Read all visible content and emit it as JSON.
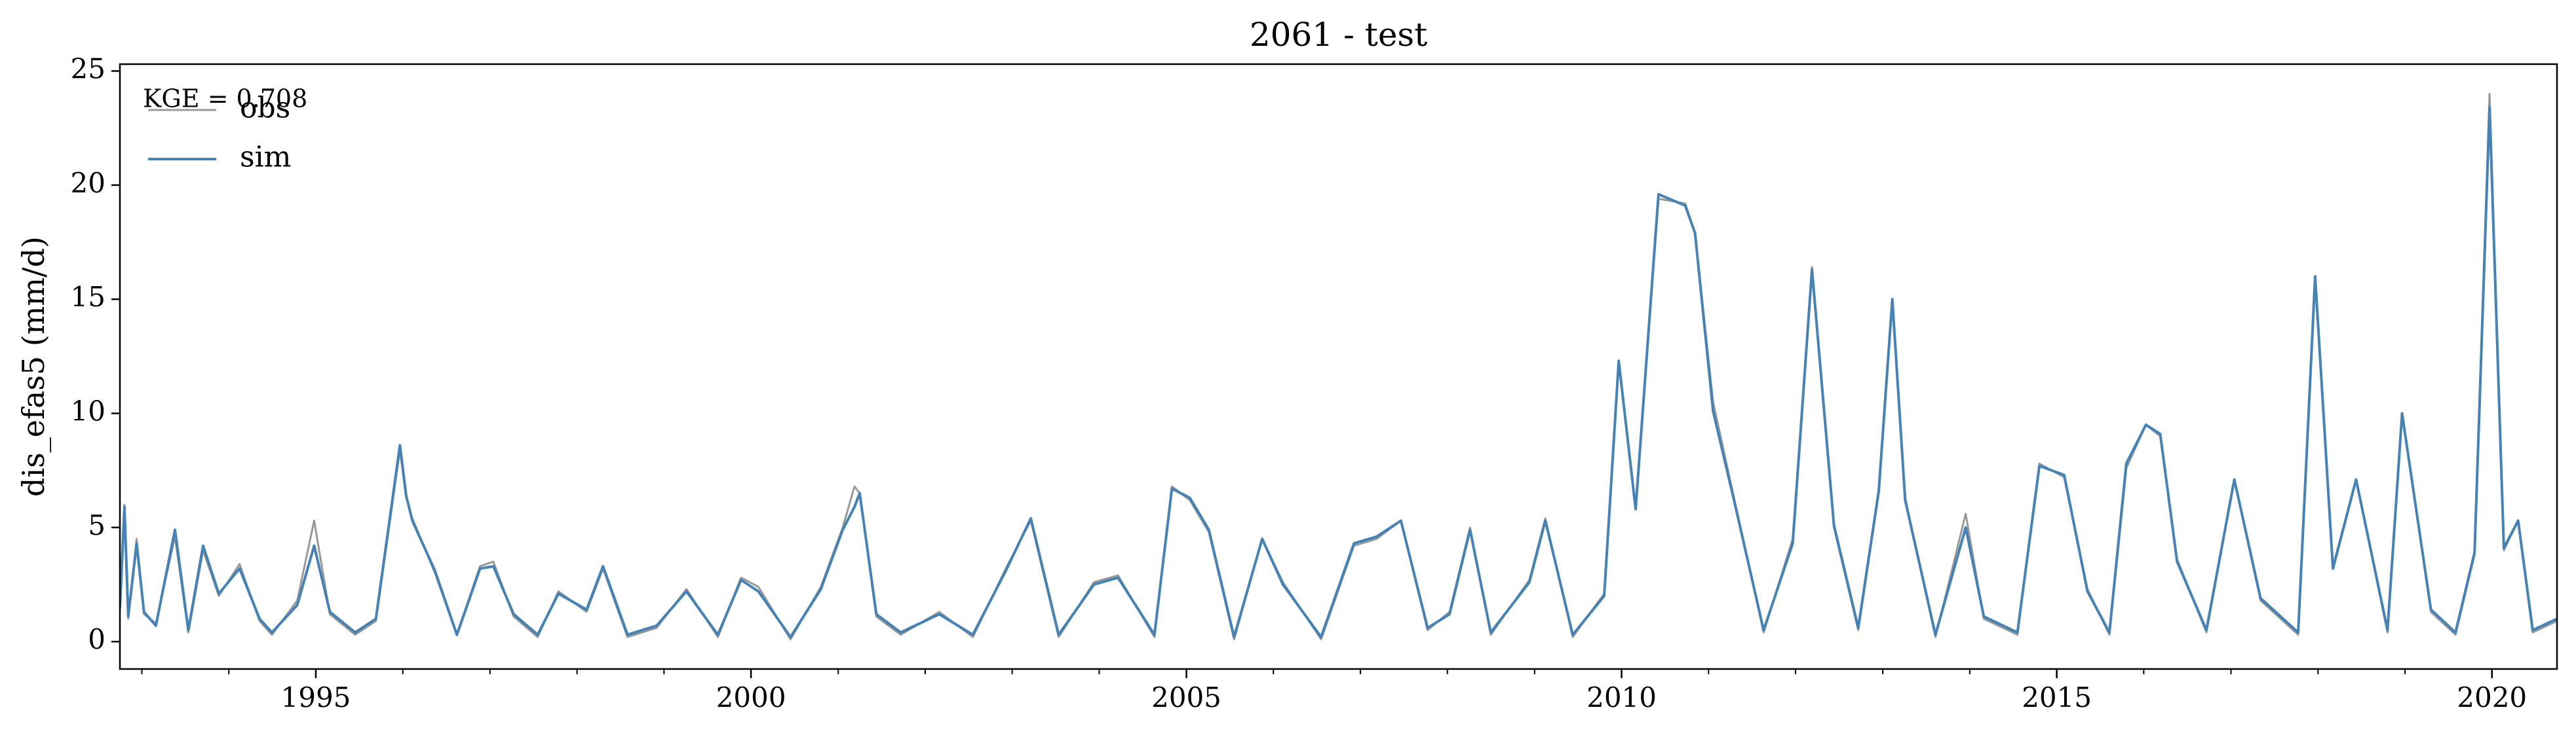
{
  "chart_data": {
    "type": "line",
    "title": "2061 - test",
    "xlabel": "",
    "ylabel": "dis_efas5 (mm/d)",
    "xlim": [
      "1992-10-01",
      "2020-09-30"
    ],
    "ylim": [
      -1.2,
      25.3
    ],
    "y_ticks": [
      0,
      5,
      10,
      15,
      20,
      25
    ],
    "y_tick_labels": [
      "0",
      "5",
      "10",
      "15",
      "20",
      "25"
    ],
    "x_ticks": [
      "1995-01-01",
      "2000-01-01",
      "2005-01-01",
      "2010-01-01",
      "2015-01-01",
      "2020-01-01"
    ],
    "x_tick_labels": [
      "1995",
      "2000",
      "2005",
      "2010",
      "2015",
      "2020"
    ],
    "grid": false,
    "legend_position": "top-left",
    "annotation": "KGE = 0.708",
    "series": [
      {
        "name": "obs",
        "color": "#999999",
        "points": [
          [
            "1992-10-01",
            1.4
          ],
          [
            "1992-10-20",
            6.0
          ],
          [
            "1992-11-05",
            1.0
          ],
          [
            "1992-12-10",
            4.5
          ],
          [
            "1993-01-10",
            1.2
          ],
          [
            "1993-03-01",
            0.8
          ],
          [
            "1993-05-20",
            4.6
          ],
          [
            "1993-07-15",
            0.4
          ],
          [
            "1993-09-15",
            4.0
          ],
          [
            "1993-11-20",
            2.0
          ],
          [
            "1994-02-15",
            3.4
          ],
          [
            "1994-05-10",
            0.9
          ],
          [
            "1994-07-01",
            0.3
          ],
          [
            "1994-10-15",
            1.8
          ],
          [
            "1994-12-25",
            5.3
          ],
          [
            "1995-03-01",
            1.2
          ],
          [
            "1995-06-15",
            0.3
          ],
          [
            "1995-09-10",
            0.9
          ],
          [
            "1995-12-20",
            8.4
          ],
          [
            "1996-01-15",
            6.3
          ],
          [
            "1996-02-10",
            5.4
          ],
          [
            "1996-05-15",
            3.0
          ],
          [
            "1996-08-15",
            0.3
          ],
          [
            "1996-11-20",
            3.3
          ],
          [
            "1997-01-15",
            3.5
          ],
          [
            "1997-04-10",
            1.1
          ],
          [
            "1997-07-20",
            0.2
          ],
          [
            "1997-10-15",
            2.2
          ],
          [
            "1998-02-10",
            1.3
          ],
          [
            "1998-04-20",
            3.2
          ],
          [
            "1998-08-01",
            0.2
          ],
          [
            "1998-12-01",
            0.6
          ],
          [
            "1999-04-05",
            2.3
          ],
          [
            "1999-08-15",
            0.2
          ],
          [
            "1999-11-20",
            2.8
          ],
          [
            "2000-02-01",
            2.4
          ],
          [
            "2000-06-15",
            0.1
          ],
          [
            "2000-10-20",
            2.4
          ],
          [
            "2001-01-20",
            5.0
          ],
          [
            "2001-03-10",
            6.8
          ],
          [
            "2001-04-01",
            6.5
          ],
          [
            "2001-06-10",
            1.1
          ],
          [
            "2001-09-20",
            0.3
          ],
          [
            "2002-03-01",
            1.3
          ],
          [
            "2002-07-20",
            0.2
          ],
          [
            "2002-12-05",
            3.2
          ],
          [
            "2003-03-20",
            5.3
          ],
          [
            "2003-07-15",
            0.2
          ],
          [
            "2003-12-10",
            2.6
          ],
          [
            "2004-03-20",
            2.9
          ],
          [
            "2004-08-20",
            0.2
          ],
          [
            "2004-11-01",
            6.8
          ],
          [
            "2005-01-15",
            6.2
          ],
          [
            "2005-04-05",
            4.8
          ],
          [
            "2005-07-20",
            0.1
          ],
          [
            "2005-11-15",
            4.5
          ],
          [
            "2006-02-10",
            2.6
          ],
          [
            "2006-07-20",
            0.1
          ],
          [
            "2006-12-05",
            4.2
          ],
          [
            "2007-03-10",
            4.5
          ],
          [
            "2007-06-20",
            5.3
          ],
          [
            "2007-10-10",
            0.5
          ],
          [
            "2008-01-10",
            1.3
          ],
          [
            "2008-04-05",
            5.0
          ],
          [
            "2008-07-01",
            0.3
          ],
          [
            "2008-12-10",
            2.7
          ],
          [
            "2009-02-15",
            5.4
          ],
          [
            "2009-06-10",
            0.2
          ],
          [
            "2009-10-20",
            2.1
          ],
          [
            "2009-12-20",
            12.3
          ],
          [
            "2010-03-01",
            5.9
          ],
          [
            "2010-06-05",
            19.4
          ],
          [
            "2010-09-25",
            19.2
          ],
          [
            "2010-11-05",
            17.9
          ],
          [
            "2011-01-20",
            10.5
          ],
          [
            "2011-04-20",
            6.2
          ],
          [
            "2011-08-20",
            0.4
          ],
          [
            "2011-12-20",
            4.5
          ],
          [
            "2012-03-10",
            16.4
          ],
          [
            "2012-06-10",
            5.0
          ],
          [
            "2012-09-20",
            0.5
          ],
          [
            "2012-12-15",
            6.5
          ],
          [
            "2013-02-10",
            15.0
          ],
          [
            "2013-04-05",
            6.3
          ],
          [
            "2013-08-10",
            0.2
          ],
          [
            "2013-12-15",
            5.6
          ],
          [
            "2014-03-01",
            1.0
          ],
          [
            "2014-07-20",
            0.3
          ],
          [
            "2014-10-20",
            7.8
          ],
          [
            "2015-02-01",
            7.2
          ],
          [
            "2015-05-10",
            2.3
          ],
          [
            "2015-08-10",
            0.3
          ],
          [
            "2015-10-20",
            7.6
          ],
          [
            "2016-01-10",
            9.5
          ],
          [
            "2016-03-10",
            9.0
          ],
          [
            "2016-05-20",
            3.6
          ],
          [
            "2016-09-20",
            0.4
          ],
          [
            "2017-01-15",
            7.1
          ],
          [
            "2017-05-05",
            1.8
          ],
          [
            "2017-10-10",
            0.3
          ],
          [
            "2017-12-20",
            16.0
          ],
          [
            "2018-03-05",
            3.3
          ],
          [
            "2018-06-10",
            7.1
          ],
          [
            "2018-10-20",
            0.4
          ],
          [
            "2018-12-20",
            10.0
          ],
          [
            "2019-04-20",
            1.3
          ],
          [
            "2019-08-01",
            0.3
          ],
          [
            "2019-10-20",
            3.8
          ],
          [
            "2019-12-22",
            24.0
          ],
          [
            "2020-02-20",
            4.0
          ],
          [
            "2020-04-20",
            5.3
          ],
          [
            "2020-06-20",
            0.4
          ],
          [
            "2020-09-30",
            0.9
          ]
        ]
      },
      {
        "name": "sim",
        "color": "#4682b4",
        "points": [
          [
            "1992-10-01",
            1.5
          ],
          [
            "1992-10-20",
            5.9
          ],
          [
            "1992-11-05",
            1.1
          ],
          [
            "1992-12-10",
            4.3
          ],
          [
            "1993-01-10",
            1.3
          ],
          [
            "1993-03-01",
            0.7
          ],
          [
            "1993-05-20",
            4.9
          ],
          [
            "1993-07-15",
            0.5
          ],
          [
            "1993-09-15",
            4.2
          ],
          [
            "1993-11-20",
            2.1
          ],
          [
            "1994-02-15",
            3.2
          ],
          [
            "1994-05-10",
            1.0
          ],
          [
            "1994-07-01",
            0.4
          ],
          [
            "1994-10-15",
            1.6
          ],
          [
            "1994-12-25",
            4.2
          ],
          [
            "1995-03-01",
            1.3
          ],
          [
            "1995-06-15",
            0.4
          ],
          [
            "1995-09-10",
            1.0
          ],
          [
            "1995-12-20",
            8.6
          ],
          [
            "1996-01-15",
            6.4
          ],
          [
            "1996-02-10",
            5.3
          ],
          [
            "1996-05-15",
            3.1
          ],
          [
            "1996-08-15",
            0.3
          ],
          [
            "1996-11-20",
            3.2
          ],
          [
            "1997-01-15",
            3.3
          ],
          [
            "1997-04-10",
            1.2
          ],
          [
            "1997-07-20",
            0.3
          ],
          [
            "1997-10-15",
            2.1
          ],
          [
            "1998-02-10",
            1.4
          ],
          [
            "1998-04-20",
            3.3
          ],
          [
            "1998-08-01",
            0.3
          ],
          [
            "1998-12-01",
            0.7
          ],
          [
            "1999-04-05",
            2.2
          ],
          [
            "1999-08-15",
            0.3
          ],
          [
            "1999-11-20",
            2.7
          ],
          [
            "2000-02-01",
            2.2
          ],
          [
            "2000-06-15",
            0.2
          ],
          [
            "2000-10-20",
            2.3
          ],
          [
            "2001-01-20",
            4.9
          ],
          [
            "2001-03-10",
            5.9
          ],
          [
            "2001-04-01",
            6.5
          ],
          [
            "2001-06-10",
            1.2
          ],
          [
            "2001-09-20",
            0.4
          ],
          [
            "2002-03-01",
            1.2
          ],
          [
            "2002-07-20",
            0.3
          ],
          [
            "2002-12-05",
            3.1
          ],
          [
            "2003-03-20",
            5.4
          ],
          [
            "2003-07-15",
            0.3
          ],
          [
            "2003-12-10",
            2.5
          ],
          [
            "2004-03-20",
            2.8
          ],
          [
            "2004-08-20",
            0.3
          ],
          [
            "2004-11-01",
            6.7
          ],
          [
            "2005-01-15",
            6.3
          ],
          [
            "2005-04-05",
            4.9
          ],
          [
            "2005-07-20",
            0.2
          ],
          [
            "2005-11-15",
            4.5
          ],
          [
            "2006-02-10",
            2.5
          ],
          [
            "2006-07-20",
            0.2
          ],
          [
            "2006-12-05",
            4.3
          ],
          [
            "2007-03-10",
            4.6
          ],
          [
            "2007-06-20",
            5.3
          ],
          [
            "2007-10-10",
            0.6
          ],
          [
            "2008-01-10",
            1.2
          ],
          [
            "2008-04-05",
            4.9
          ],
          [
            "2008-07-01",
            0.4
          ],
          [
            "2008-12-10",
            2.6
          ],
          [
            "2009-02-15",
            5.3
          ],
          [
            "2009-06-10",
            0.3
          ],
          [
            "2009-10-20",
            2.0
          ],
          [
            "2009-12-20",
            12.3
          ],
          [
            "2010-03-01",
            5.8
          ],
          [
            "2010-06-05",
            19.6
          ],
          [
            "2010-09-25",
            19.1
          ],
          [
            "2010-11-05",
            17.9
          ],
          [
            "2011-01-20",
            10.1
          ],
          [
            "2011-04-20",
            6.1
          ],
          [
            "2011-08-20",
            0.5
          ],
          [
            "2011-12-20",
            4.3
          ],
          [
            "2012-03-10",
            16.3
          ],
          [
            "2012-06-10",
            5.1
          ],
          [
            "2012-09-20",
            0.6
          ],
          [
            "2012-12-15",
            6.6
          ],
          [
            "2013-02-10",
            15.0
          ],
          [
            "2013-04-05",
            6.2
          ],
          [
            "2013-08-10",
            0.3
          ],
          [
            "2013-12-15",
            5.0
          ],
          [
            "2014-03-01",
            1.1
          ],
          [
            "2014-07-20",
            0.4
          ],
          [
            "2014-10-20",
            7.7
          ],
          [
            "2015-02-01",
            7.3
          ],
          [
            "2015-05-10",
            2.2
          ],
          [
            "2015-08-10",
            0.4
          ],
          [
            "2015-10-20",
            7.8
          ],
          [
            "2016-01-10",
            9.5
          ],
          [
            "2016-03-10",
            9.1
          ],
          [
            "2016-05-20",
            3.5
          ],
          [
            "2016-09-20",
            0.5
          ],
          [
            "2017-01-15",
            7.1
          ],
          [
            "2017-05-05",
            1.9
          ],
          [
            "2017-10-10",
            0.4
          ],
          [
            "2017-12-20",
            16.0
          ],
          [
            "2018-03-05",
            3.2
          ],
          [
            "2018-06-10",
            7.1
          ],
          [
            "2018-10-20",
            0.5
          ],
          [
            "2018-12-20",
            10.0
          ],
          [
            "2019-04-20",
            1.4
          ],
          [
            "2019-08-01",
            0.4
          ],
          [
            "2019-10-20",
            3.9
          ],
          [
            "2019-12-22",
            23.4
          ],
          [
            "2020-02-20",
            4.1
          ],
          [
            "2020-04-20",
            5.3
          ],
          [
            "2020-06-20",
            0.5
          ],
          [
            "2020-09-30",
            1.0
          ]
        ]
      }
    ]
  }
}
